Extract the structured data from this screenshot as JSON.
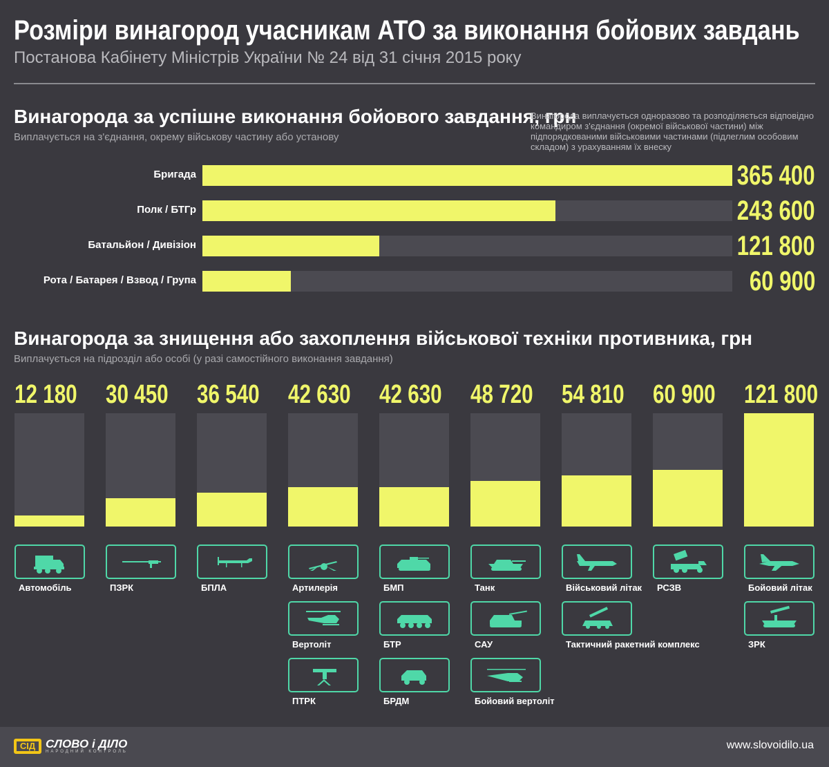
{
  "header": {
    "title": "Розміри винагород учасникам АТО за виконання бойових завдань",
    "subtitle": "Постанова Кабінету Міністрів України № 24 від 31 січня 2015 року"
  },
  "section1": {
    "title": "Винагорода за успішне виконання бойового завдання, грн",
    "subtitle": "Виплачується на з'єднання, окрему військову частину або установу",
    "note": "Винагорода виплачується одноразово та розподіляється відповідно командиром з'єднання (окремої військової частини) між підпорядкованими військовими частинами (підлеглим особовим складом) з урахуванням їх внеску"
  },
  "section2": {
    "title": "Винагорода за знищення або захоплення військової техніки противника, грн",
    "subtitle": "Виплачується на підрозділ або особі (у разі самостійного виконання завдання)"
  },
  "chart_data": [
    {
      "type": "bar",
      "orientation": "horizontal",
      "title": "Винагорода за успішне виконання бойового завдання, грн",
      "categories": [
        "Бригада",
        "Полк / БТГр",
        "Батальйон / Дивізіон",
        "Рота / Батарея / Взвод / Група"
      ],
      "values": [
        365400,
        243600,
        121800,
        60900
      ],
      "labels": [
        "365 400",
        "243 600",
        "121 800",
        "60 900"
      ],
      "xlim": [
        0,
        365400
      ]
    },
    {
      "type": "bar",
      "orientation": "vertical",
      "title": "Винагорода за знищення або захоплення військової техніки противника, грн",
      "ylim": [
        0,
        121800
      ],
      "columns": [
        {
          "value": 12180,
          "label": "12 180",
          "items": [
            {
              "name": "Автомобіль",
              "icon": "truck-icon"
            }
          ]
        },
        {
          "value": 30450,
          "label": "30 450",
          "items": [
            {
              "name": "ПЗРК",
              "icon": "manpads-icon"
            }
          ]
        },
        {
          "value": 36540,
          "label": "36 540",
          "items": [
            {
              "name": "БПЛА",
              "icon": "drone-icon"
            }
          ]
        },
        {
          "value": 42630,
          "label": "42 630",
          "items": [
            {
              "name": "Артилерія",
              "icon": "artillery-icon"
            },
            {
              "name": "Вертоліт",
              "icon": "helicopter-icon"
            },
            {
              "name": "ПТРК",
              "icon": "atgm-icon"
            }
          ]
        },
        {
          "value": 42630,
          "label": "42 630",
          "items": [
            {
              "name": "БМП",
              "icon": "ifv-icon"
            },
            {
              "name": "БТР",
              "icon": "apc-icon"
            },
            {
              "name": "БРДМ",
              "icon": "scout-car-icon"
            }
          ]
        },
        {
          "value": 48720,
          "label": "48 720",
          "items": [
            {
              "name": "Танк",
              "icon": "tank-icon"
            },
            {
              "name": "САУ",
              "icon": "self-propelled-gun-icon"
            },
            {
              "name": "Бойовий вертоліт",
              "icon": "attack-helicopter-icon"
            }
          ]
        },
        {
          "value": 54810,
          "label": "54 810",
          "items": [
            {
              "name": "Військовий літак",
              "icon": "transport-plane-icon"
            },
            {
              "name": "Тактичний ракетний комплекс",
              "icon": "missile-launcher-icon"
            }
          ]
        },
        {
          "value": 60900,
          "label": "60 900",
          "items": [
            {
              "name": "РСЗВ",
              "icon": "mlrs-icon"
            }
          ]
        },
        {
          "value": 121800,
          "label": "121 800",
          "items": [
            {
              "name": "Бойовий літак",
              "icon": "fighter-jet-icon"
            },
            {
              "name": "ЗРК",
              "icon": "sam-icon"
            }
          ]
        }
      ]
    }
  ],
  "colors": {
    "background": "#3a393f",
    "track": "#4b4a51",
    "bar": "#f0f66a",
    "icon": "#4fd8a8",
    "logo": "#f2c517"
  },
  "footer": {
    "logo_mark": "СІД",
    "logo_name": "СЛОВО і ДІЛО",
    "logo_tagline": "НАРОДНИЙ КОНТРОЛЬ",
    "website": "www.slovoidilo.ua"
  }
}
